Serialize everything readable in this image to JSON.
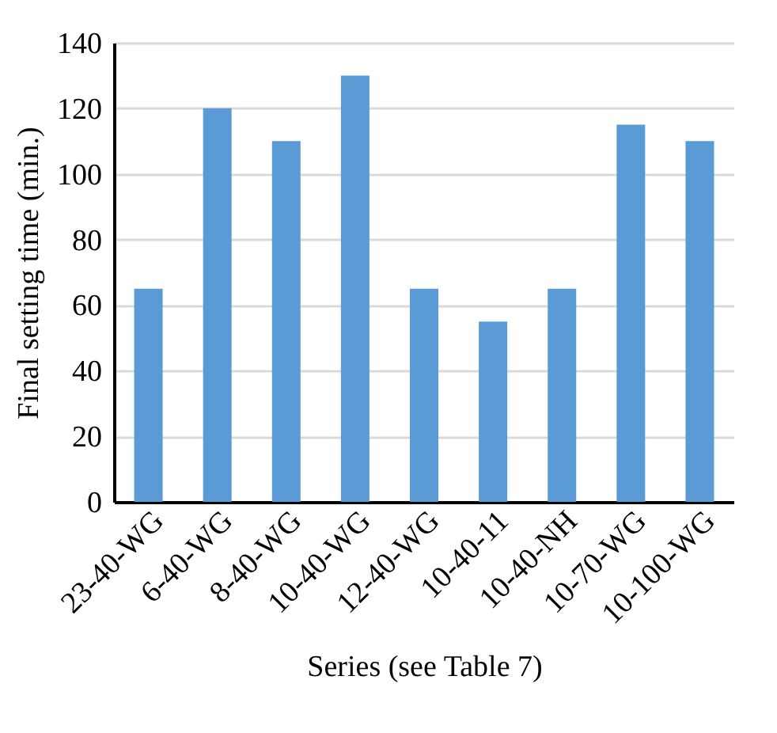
{
  "chart_data": {
    "type": "bar",
    "xlabel": "Series (see Table 7)",
    "ylabel": "Final setting time (min.)",
    "categories": [
      "23-40-WG",
      "6-40-WG",
      "8-40-WG",
      "10-40-WG",
      "12-40-WG",
      "10-40-11",
      "10-40-NH",
      "10-70-WG",
      "10-100-WG"
    ],
    "values": [
      65,
      120,
      110,
      130,
      65,
      55,
      65,
      115,
      110
    ],
    "color": "#5b9bd5",
    "ylim": [
      0,
      140
    ],
    "yticks": [
      0,
      20,
      40,
      60,
      80,
      100,
      120,
      140
    ],
    "grid": "y"
  }
}
